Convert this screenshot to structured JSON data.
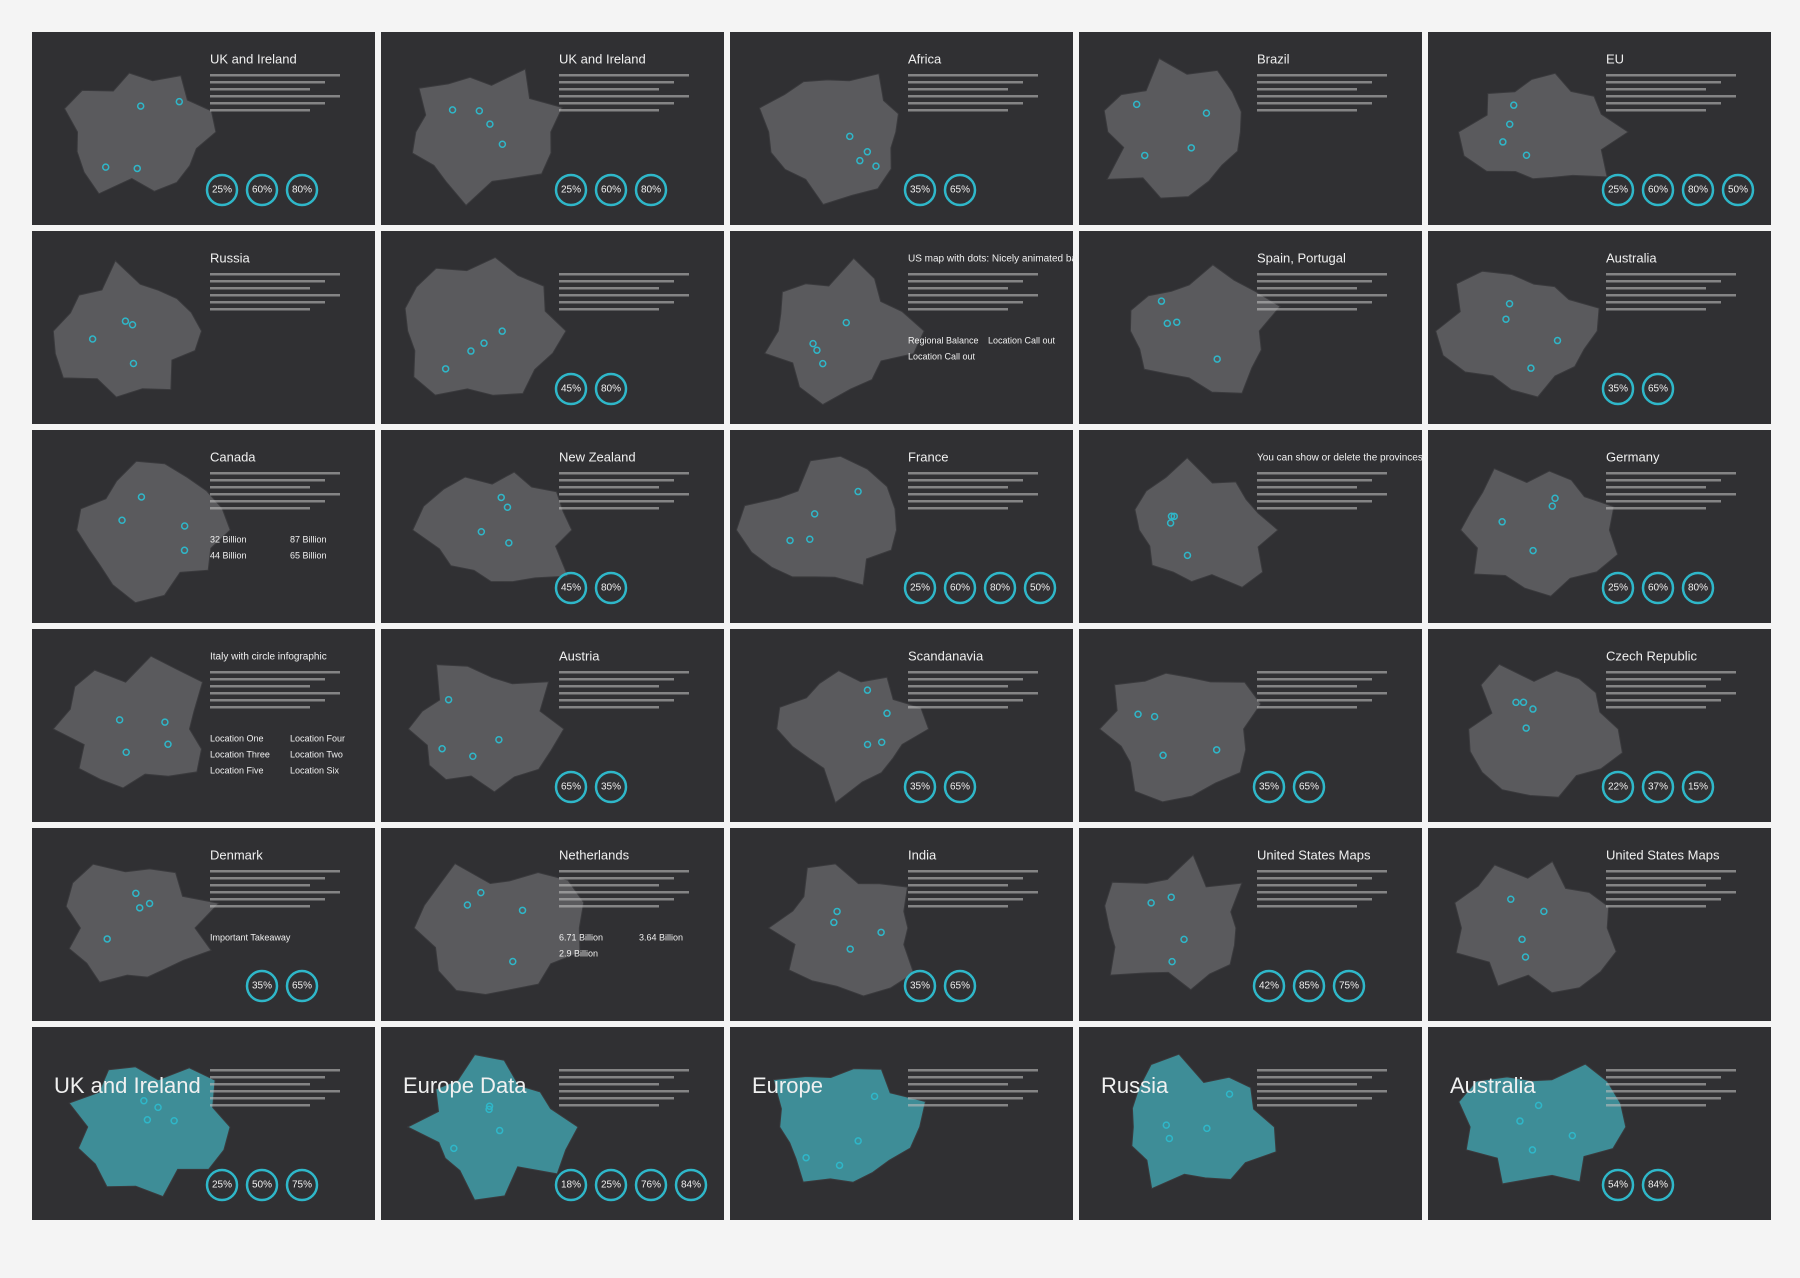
{
  "slides": [
    {
      "title": "UK and Ireland",
      "labels": [
        "25%",
        "60%",
        "80%"
      ]
    },
    {
      "title": "UK and Ireland",
      "labels": [
        "25%",
        "60%",
        "80%"
      ]
    },
    {
      "title": "Africa",
      "labels": [
        "35%",
        "65%"
      ]
    },
    {
      "title": "Brazil",
      "labels": []
    },
    {
      "title": "EU",
      "labels": [
        "25%",
        "60%",
        "80%",
        "50%"
      ]
    },
    {
      "title": "Russia",
      "labels": []
    },
    {
      "title": null,
      "labels": [
        "45%",
        "80%"
      ]
    },
    {
      "title": "US map with dots: Nicely animated baby",
      "labels": [
        "Regional Balance",
        "Location Call out",
        "Location Call out"
      ]
    },
    {
      "title": "Spain, Portugal",
      "labels": []
    },
    {
      "title": "Australia",
      "labels": [
        "35%",
        "65%"
      ]
    },
    {
      "title": "Canada",
      "labels": [
        "32 Billion",
        "87 Billion",
        "44 Billion",
        "65 Billion"
      ]
    },
    {
      "title": "New Zealand",
      "labels": [
        "45%",
        "80%"
      ]
    },
    {
      "title": "France",
      "labels": [
        "25%",
        "60%",
        "80%",
        "50%"
      ]
    },
    {
      "title": "You can show or delete the provinces on all maps",
      "labels": []
    },
    {
      "title": "Germany",
      "labels": [
        "25%",
        "60%",
        "80%"
      ]
    },
    {
      "title": "Italy with circle infographic",
      "labels": [
        "Location One",
        "Location Four",
        "Location Three",
        "Location Two",
        "Location Five",
        "Location Six"
      ]
    },
    {
      "title": "Austria",
      "labels": [
        "65%",
        "35%"
      ]
    },
    {
      "title": "Scandanavia",
      "labels": [
        "35%",
        "65%"
      ]
    },
    {
      "title": null,
      "labels": [
        "35%",
        "65%"
      ]
    },
    {
      "title": "Czech Republic",
      "labels": [
        "22%",
        "37%",
        "15%"
      ]
    },
    {
      "title": "Denmark",
      "labels": [
        "Important Takeaway",
        "35%",
        "65%"
      ]
    },
    {
      "title": "Netherlands",
      "labels": [
        "6.71 Billion",
        "3.64 Billion",
        "2.9 Billion"
      ]
    },
    {
      "title": "India",
      "labels": [
        "35%",
        "65%"
      ]
    },
    {
      "title": "United States Maps",
      "labels": [
        "42%",
        "85%",
        "75%"
      ]
    },
    {
      "title": "United States Maps",
      "labels": []
    },
    {
      "title": "UK and Ireland",
      "labels": [
        "25%",
        "50%",
        "75%"
      ]
    },
    {
      "title": "Europe Data",
      "labels": [
        "18%",
        "25%",
        "76%",
        "84%"
      ]
    },
    {
      "title": "Europe",
      "labels": []
    },
    {
      "title": "Russia",
      "labels": []
    },
    {
      "title": "Australia",
      "labels": [
        "54%",
        "84%"
      ]
    }
  ]
}
